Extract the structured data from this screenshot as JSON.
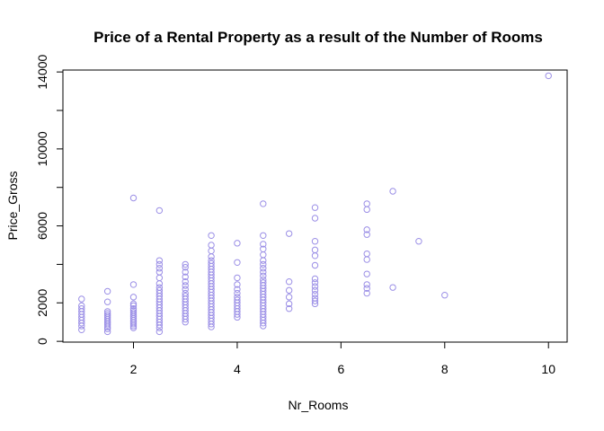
{
  "chart_data": {
    "type": "scatter",
    "title": "Price of a Rental Property as a result of the Number of Rooms",
    "xlabel": "Nr_Rooms",
    "ylabel": "Price_Gross",
    "xlim": [
      0.64,
      10.36
    ],
    "ylim": [
      -40,
      14100
    ],
    "xticks": [
      2,
      4,
      6,
      8,
      10
    ],
    "yticks": [
      0,
      2000,
      6000,
      10000,
      14000
    ],
    "ytick_minor": [
      4000,
      8000,
      12000
    ],
    "grid": false,
    "point_color": "#9B8FE6",
    "series": [
      {
        "points": [
          [
            1,
            600
          ],
          [
            1,
            800
          ],
          [
            1,
            950
          ],
          [
            1,
            1100
          ],
          [
            1,
            1250
          ],
          [
            1,
            1400
          ],
          [
            1,
            1550
          ],
          [
            1,
            1700
          ],
          [
            1,
            1850
          ],
          [
            1,
            2200
          ],
          [
            1.5,
            500
          ],
          [
            1.5,
            650
          ],
          [
            1.5,
            750
          ],
          [
            1.5,
            850
          ],
          [
            1.5,
            950
          ],
          [
            1.5,
            1050
          ],
          [
            1.5,
            1150
          ],
          [
            1.5,
            1250
          ],
          [
            1.5,
            1350
          ],
          [
            1.5,
            1450
          ],
          [
            1.5,
            1550
          ],
          [
            1.5,
            2050
          ],
          [
            1.5,
            2600
          ],
          [
            2,
            700
          ],
          [
            2,
            800
          ],
          [
            2,
            900
          ],
          [
            2,
            1000
          ],
          [
            2,
            1100
          ],
          [
            2,
            1200
          ],
          [
            2,
            1300
          ],
          [
            2,
            1400
          ],
          [
            2,
            1500
          ],
          [
            2,
            1600
          ],
          [
            2,
            1700
          ],
          [
            2,
            1850
          ],
          [
            2,
            1950
          ],
          [
            2,
            2300
          ],
          [
            2,
            2950
          ],
          [
            2,
            7450
          ],
          [
            2.5,
            500
          ],
          [
            2.5,
            700
          ],
          [
            2.5,
            850
          ],
          [
            2.5,
            1000
          ],
          [
            2.5,
            1150
          ],
          [
            2.5,
            1300
          ],
          [
            2.5,
            1450
          ],
          [
            2.5,
            1600
          ],
          [
            2.5,
            1750
          ],
          [
            2.5,
            1900
          ],
          [
            2.5,
            2050
          ],
          [
            2.5,
            2200
          ],
          [
            2.5,
            2350
          ],
          [
            2.5,
            2500
          ],
          [
            2.5,
            2650
          ],
          [
            2.5,
            2800
          ],
          [
            2.5,
            3000
          ],
          [
            2.5,
            3300
          ],
          [
            2.5,
            3600
          ],
          [
            2.5,
            3800
          ],
          [
            2.5,
            4000
          ],
          [
            2.5,
            4200
          ],
          [
            2.5,
            6800
          ],
          [
            3,
            1000
          ],
          [
            3,
            1150
          ],
          [
            3,
            1300
          ],
          [
            3,
            1450
          ],
          [
            3,
            1600
          ],
          [
            3,
            1750
          ],
          [
            3,
            1900
          ],
          [
            3,
            2050
          ],
          [
            3,
            2200
          ],
          [
            3,
            2350
          ],
          [
            3,
            2500
          ],
          [
            3,
            2700
          ],
          [
            3,
            2900
          ],
          [
            3,
            3100
          ],
          [
            3,
            3350
          ],
          [
            3,
            3600
          ],
          [
            3,
            3850
          ],
          [
            3,
            4000
          ],
          [
            3.5,
            750
          ],
          [
            3.5,
            900
          ],
          [
            3.5,
            1050
          ],
          [
            3.5,
            1200
          ],
          [
            3.5,
            1350
          ],
          [
            3.5,
            1500
          ],
          [
            3.5,
            1650
          ],
          [
            3.5,
            1800
          ],
          [
            3.5,
            1950
          ],
          [
            3.5,
            2100
          ],
          [
            3.5,
            2250
          ],
          [
            3.5,
            2400
          ],
          [
            3.5,
            2550
          ],
          [
            3.5,
            2700
          ],
          [
            3.5,
            2850
          ],
          [
            3.5,
            3000
          ],
          [
            3.5,
            3150
          ],
          [
            3.5,
            3300
          ],
          [
            3.5,
            3450
          ],
          [
            3.5,
            3600
          ],
          [
            3.5,
            3750
          ],
          [
            3.5,
            3900
          ],
          [
            3.5,
            4050
          ],
          [
            3.5,
            4200
          ],
          [
            3.5,
            4400
          ],
          [
            3.5,
            4700
          ],
          [
            3.5,
            5000
          ],
          [
            3.5,
            5500
          ],
          [
            4,
            1250
          ],
          [
            4,
            1400
          ],
          [
            4,
            1550
          ],
          [
            4,
            1700
          ],
          [
            4,
            1850
          ],
          [
            4,
            2000
          ],
          [
            4,
            2150
          ],
          [
            4,
            2300
          ],
          [
            4,
            2500
          ],
          [
            4,
            2700
          ],
          [
            4,
            2950
          ],
          [
            4,
            3300
          ],
          [
            4,
            4100
          ],
          [
            4,
            5100
          ],
          [
            4.5,
            800
          ],
          [
            4.5,
            950
          ],
          [
            4.5,
            1100
          ],
          [
            4.5,
            1250
          ],
          [
            4.5,
            1400
          ],
          [
            4.5,
            1550
          ],
          [
            4.5,
            1700
          ],
          [
            4.5,
            1850
          ],
          [
            4.5,
            2000
          ],
          [
            4.5,
            2150
          ],
          [
            4.5,
            2300
          ],
          [
            4.5,
            2450
          ],
          [
            4.5,
            2600
          ],
          [
            4.5,
            2750
          ],
          [
            4.5,
            2900
          ],
          [
            4.5,
            3050
          ],
          [
            4.5,
            3200
          ],
          [
            4.5,
            3400
          ],
          [
            4.5,
            3600
          ],
          [
            4.5,
            3800
          ],
          [
            4.5,
            4000
          ],
          [
            4.5,
            4200
          ],
          [
            4.5,
            4500
          ],
          [
            4.5,
            4800
          ],
          [
            4.5,
            5050
          ],
          [
            4.5,
            5500
          ],
          [
            4.5,
            7150
          ],
          [
            5,
            1700
          ],
          [
            5,
            1950
          ],
          [
            5,
            2300
          ],
          [
            5,
            2650
          ],
          [
            5,
            3100
          ],
          [
            5,
            5600
          ],
          [
            5.5,
            1950
          ],
          [
            5.5,
            2100
          ],
          [
            5.5,
            2250
          ],
          [
            5.5,
            2450
          ],
          [
            5.5,
            2650
          ],
          [
            5.5,
            2850
          ],
          [
            5.5,
            3050
          ],
          [
            5.5,
            3250
          ],
          [
            5.5,
            3950
          ],
          [
            5.5,
            4450
          ],
          [
            5.5,
            4750
          ],
          [
            5.5,
            5200
          ],
          [
            5.5,
            6400
          ],
          [
            5.5,
            6950
          ],
          [
            6.5,
            2500
          ],
          [
            6.5,
            2750
          ],
          [
            6.5,
            2950
          ],
          [
            6.5,
            3500
          ],
          [
            6.5,
            4250
          ],
          [
            6.5,
            4550
          ],
          [
            6.5,
            5550
          ],
          [
            6.5,
            5800
          ],
          [
            6.5,
            6850
          ],
          [
            6.5,
            7150
          ],
          [
            7,
            2800
          ],
          [
            7,
            7800
          ],
          [
            7.5,
            5200
          ],
          [
            8,
            2400
          ],
          [
            10,
            13800
          ]
        ]
      }
    ]
  }
}
